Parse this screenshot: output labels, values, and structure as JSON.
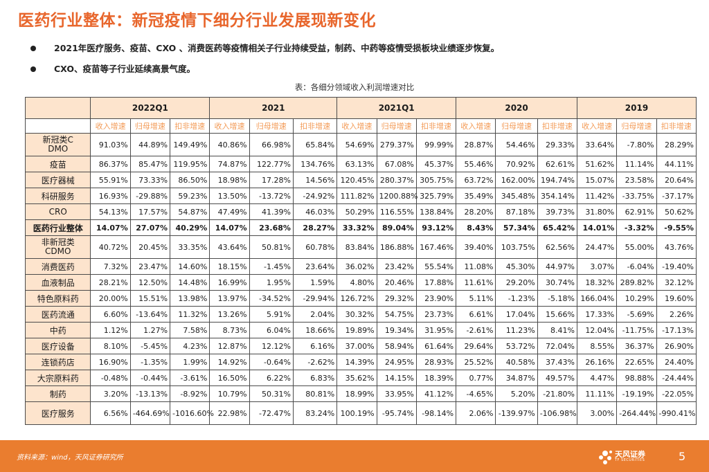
{
  "title": "医药行业整体：新冠疫情下细分行业发展现新变化",
  "bullets": [
    "2021年医疗服务、疫苗、CXO 、消费医药等疫情相关子行业持续受益，制药、中药等疫情受损板块业绩逐步恢复。",
    "CXO、疫苗等子行业延续高景气度。"
  ],
  "caption": "表：各细分领域收入利润增速对比",
  "periods": [
    "2022Q1",
    "2021",
    "2021Q1",
    "2020",
    "2019"
  ],
  "metrics": [
    "收入增速",
    "归母增速",
    "扣非增速"
  ],
  "rows": [
    {
      "name": "新冠类CDMO",
      "v": [
        "91.03%",
        "44.89%",
        "149.49%",
        "40.86%",
        "66.98%",
        "65.84%",
        "54.69%",
        "279.37%",
        "99.99%",
        "28.87%",
        "54.46%",
        "29.33%",
        "33.64%",
        "-7.80%",
        "28.29%"
      ]
    },
    {
      "name": "疫苗",
      "v": [
        "86.37%",
        "85.47%",
        "119.95%",
        "74.87%",
        "122.77%",
        "134.76%",
        "63.13%",
        "67.08%",
        "45.37%",
        "55.46%",
        "70.92%",
        "62.61%",
        "51.62%",
        "11.14%",
        "44.11%"
      ]
    },
    {
      "name": "医疗器械",
      "v": [
        "55.91%",
        "73.33%",
        "86.50%",
        "18.98%",
        "17.28%",
        "14.56%",
        "120.45%",
        "280.37%",
        "305.75%",
        "63.72%",
        "162.00%",
        "194.74%",
        "15.07%",
        "23.58%",
        "20.64%"
      ]
    },
    {
      "name": "科研服务",
      "v": [
        "16.93%",
        "-29.88%",
        "59.23%",
        "13.50%",
        "-13.72%",
        "-24.92%",
        "111.82%",
        "1200.88%",
        "325.79%",
        "35.49%",
        "345.48%",
        "354.14%",
        "11.42%",
        "-33.75%",
        "-37.17%"
      ]
    },
    {
      "name": "CRO",
      "v": [
        "54.13%",
        "17.57%",
        "54.87%",
        "47.49%",
        "41.39%",
        "46.03%",
        "50.29%",
        "116.55%",
        "138.84%",
        "28.20%",
        "87.18%",
        "39.73%",
        "31.80%",
        "62.91%",
        "50.62%"
      ]
    },
    {
      "name": "医药行业整体",
      "v": [
        "14.07%",
        "27.07%",
        "40.29%",
        "14.07%",
        "23.68%",
        "28.27%",
        "33.32%",
        "89.04%",
        "93.12%",
        "8.43%",
        "57.34%",
        "65.42%",
        "14.01%",
        "-3.32%",
        "-9.55%"
      ]
    },
    {
      "name": "非新冠类CDMO",
      "v": [
        "40.72%",
        "20.45%",
        "33.35%",
        "43.64%",
        "50.81%",
        "60.78%",
        "83.84%",
        "186.88%",
        "167.46%",
        "39.40%",
        "103.75%",
        "62.56%",
        "24.47%",
        "55.00%",
        "43.76%"
      ]
    },
    {
      "name": "消费医药",
      "v": [
        "7.32%",
        "23.47%",
        "14.60%",
        "18.15%",
        "-1.45%",
        "23.64%",
        "36.02%",
        "23.42%",
        "55.54%",
        "11.08%",
        "45.30%",
        "44.97%",
        "3.07%",
        "-6.04%",
        "-19.40%"
      ]
    },
    {
      "name": "血液制品",
      "v": [
        "28.21%",
        "12.50%",
        "14.48%",
        "16.99%",
        "1.95%",
        "1.59%",
        "4.80%",
        "20.46%",
        "17.88%",
        "11.61%",
        "29.20%",
        "30.74%",
        "18.32%",
        "289.82%",
        "32.12%"
      ]
    },
    {
      "name": "特色原料药",
      "v": [
        "20.00%",
        "15.51%",
        "13.98%",
        "13.97%",
        "-34.52%",
        "-29.94%",
        "126.72%",
        "29.32%",
        "23.90%",
        "5.11%",
        "-1.23%",
        "-5.18%",
        "166.04%",
        "10.29%",
        "19.60%"
      ]
    },
    {
      "name": "医药流通",
      "v": [
        "6.60%",
        "-13.64%",
        "11.32%",
        "13.26%",
        "5.91%",
        "2.04%",
        "30.32%",
        "54.75%",
        "23.73%",
        "6.61%",
        "17.04%",
        "15.66%",
        "17.33%",
        "-5.69%",
        "2.26%"
      ]
    },
    {
      "name": "中药",
      "v": [
        "1.12%",
        "1.27%",
        "7.58%",
        "8.73%",
        "6.04%",
        "18.66%",
        "19.89%",
        "19.34%",
        "31.95%",
        "-2.61%",
        "11.23%",
        "8.41%",
        "12.04%",
        "-11.75%",
        "-17.13%"
      ]
    },
    {
      "name": "医疗设备",
      "v": [
        "8.10%",
        "-5.45%",
        "4.23%",
        "12.87%",
        "12.12%",
        "6.16%",
        "37.00%",
        "58.94%",
        "61.64%",
        "29.64%",
        "53.72%",
        "72.04%",
        "8.55%",
        "36.37%",
        "26.90%"
      ]
    },
    {
      "name": "连锁药店",
      "v": [
        "16.90%",
        "-1.35%",
        "1.99%",
        "14.92%",
        "-0.64%",
        "-2.62%",
        "14.39%",
        "24.95%",
        "28.93%",
        "25.52%",
        "40.58%",
        "37.43%",
        "26.16%",
        "22.65%",
        "24.40%"
      ]
    },
    {
      "name": "大宗原料药",
      "v": [
        "-0.48%",
        "-0.44%",
        "-3.61%",
        "16.50%",
        "6.22%",
        "6.83%",
        "35.62%",
        "14.15%",
        "18.39%",
        "0.77%",
        "34.87%",
        "49.57%",
        "4.47%",
        "98.88%",
        "-24.44%"
      ]
    },
    {
      "name": "制药",
      "v": [
        "3.20%",
        "-13.13%",
        "-8.92%",
        "10.79%",
        "50.31%",
        "80.81%",
        "18.99%",
        "33.95%",
        "41.12%",
        "-4.65%",
        "5.20%",
        "-21.80%",
        "11.11%",
        "-19.19%",
        "-22.05%"
      ]
    },
    {
      "name": "医疗服务",
      "v": [
        "6.56%",
        "-464.69%",
        "-1016.60%",
        "22.98%",
        "-72.47%",
        "83.24%",
        "100.19%",
        "-95.74%",
        "-98.14%",
        "2.06%",
        "-139.97%",
        "-106.98%",
        "3.00%",
        "-264.44%",
        "-990.41%"
      ]
    }
  ],
  "highlight_row": "医药行业整体",
  "footer": {
    "source": "资料来源：wind，天风证券研究所",
    "logo_text": "天风证券",
    "logo_sub": "TF SECURITIES",
    "page_number": "5"
  },
  "colors": {
    "accent": "#e8662c",
    "header_fill": "#fde4cd",
    "metric_text": "#f39b57",
    "footer_bar": "#ea7d2f"
  }
}
